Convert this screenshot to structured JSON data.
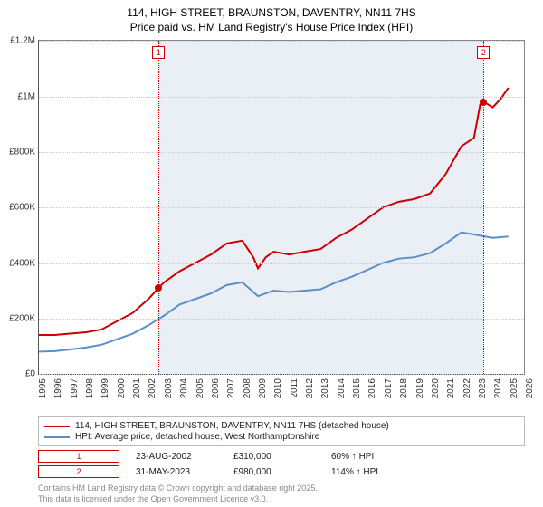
{
  "title_line1": "114, HIGH STREET, BRAUNSTON, DAVENTRY, NN11 7HS",
  "title_line2": "Price paid vs. HM Land Registry's House Price Index (HPI)",
  "chart": {
    "type": "line",
    "xlim": [
      1995,
      2026
    ],
    "ylim": [
      0,
      1200000
    ],
    "ytick_step": 200000,
    "yticks": [
      {
        "v": 0,
        "label": "£0"
      },
      {
        "v": 200000,
        "label": "£200K"
      },
      {
        "v": 400000,
        "label": "£400K"
      },
      {
        "v": 600000,
        "label": "£600K"
      },
      {
        "v": 800000,
        "label": "£800K"
      },
      {
        "v": 1000000,
        "label": "£1M"
      },
      {
        "v": 1200000,
        "label": "£1.2M"
      }
    ],
    "xticks": [
      1995,
      1996,
      1997,
      1998,
      1999,
      2000,
      2001,
      2002,
      2003,
      2004,
      2005,
      2006,
      2007,
      2008,
      2009,
      2010,
      2011,
      2012,
      2013,
      2014,
      2015,
      2016,
      2017,
      2018,
      2019,
      2020,
      2021,
      2022,
      2023,
      2024,
      2025,
      2026
    ],
    "shade_from": 2002.65,
    "shade_to": 2023.42,
    "grid_color": "#cccccc",
    "background_color": "#ffffff",
    "series": [
      {
        "name": "price_paid",
        "color": "#cc0000",
        "width": 2,
        "points": [
          [
            1995,
            140000
          ],
          [
            1996,
            140000
          ],
          [
            1997,
            145000
          ],
          [
            1998,
            150000
          ],
          [
            1999,
            160000
          ],
          [
            2000,
            190000
          ],
          [
            2001,
            220000
          ],
          [
            2002,
            270000
          ],
          [
            2002.65,
            310000
          ],
          [
            2003,
            330000
          ],
          [
            2004,
            370000
          ],
          [
            2005,
            400000
          ],
          [
            2006,
            430000
          ],
          [
            2007,
            470000
          ],
          [
            2008,
            480000
          ],
          [
            2008.7,
            420000
          ],
          [
            2009,
            380000
          ],
          [
            2009.5,
            420000
          ],
          [
            2010,
            440000
          ],
          [
            2011,
            430000
          ],
          [
            2012,
            440000
          ],
          [
            2013,
            450000
          ],
          [
            2014,
            490000
          ],
          [
            2015,
            520000
          ],
          [
            2016,
            560000
          ],
          [
            2017,
            600000
          ],
          [
            2018,
            620000
          ],
          [
            2019,
            630000
          ],
          [
            2020,
            650000
          ],
          [
            2021,
            720000
          ],
          [
            2022,
            820000
          ],
          [
            2022.8,
            850000
          ],
          [
            2023.2,
            970000
          ],
          [
            2023.42,
            980000
          ],
          [
            2024,
            960000
          ],
          [
            2024.5,
            990000
          ],
          [
            2025,
            1030000
          ]
        ]
      },
      {
        "name": "hpi",
        "color": "#5b8fc7",
        "width": 2,
        "points": [
          [
            1995,
            80000
          ],
          [
            1996,
            82000
          ],
          [
            1997,
            88000
          ],
          [
            1998,
            95000
          ],
          [
            1999,
            105000
          ],
          [
            2000,
            125000
          ],
          [
            2001,
            145000
          ],
          [
            2002,
            175000
          ],
          [
            2003,
            210000
          ],
          [
            2004,
            250000
          ],
          [
            2005,
            270000
          ],
          [
            2006,
            290000
          ],
          [
            2007,
            320000
          ],
          [
            2008,
            330000
          ],
          [
            2009,
            280000
          ],
          [
            2010,
            300000
          ],
          [
            2011,
            295000
          ],
          [
            2012,
            300000
          ],
          [
            2013,
            305000
          ],
          [
            2014,
            330000
          ],
          [
            2015,
            350000
          ],
          [
            2016,
            375000
          ],
          [
            2017,
            400000
          ],
          [
            2018,
            415000
          ],
          [
            2019,
            420000
          ],
          [
            2020,
            435000
          ],
          [
            2021,
            470000
          ],
          [
            2022,
            510000
          ],
          [
            2023,
            500000
          ],
          [
            2024,
            490000
          ],
          [
            2025,
            495000
          ]
        ]
      }
    ],
    "markers": [
      {
        "id": "1",
        "x": 2002.65,
        "y": 310000
      },
      {
        "id": "2",
        "x": 2023.42,
        "y": 980000
      }
    ]
  },
  "legend": {
    "row1": {
      "color": "#cc0000",
      "label": "114, HIGH STREET, BRAUNSTON, DAVENTRY, NN11 7HS (detached house)"
    },
    "row2": {
      "color": "#5b8fc7",
      "label": "HPI: Average price, detached house, West Northamptonshire"
    }
  },
  "sales": [
    {
      "id": "1",
      "date": "23-AUG-2002",
      "price": "£310,000",
      "pct": "60% ↑ HPI"
    },
    {
      "id": "2",
      "date": "31-MAY-2023",
      "price": "£980,000",
      "pct": "114% ↑ HPI"
    }
  ],
  "footer_line1": "Contains HM Land Registry data © Crown copyright and database right 2025.",
  "footer_line2": "This data is licensed under the Open Government Licence v3.0."
}
